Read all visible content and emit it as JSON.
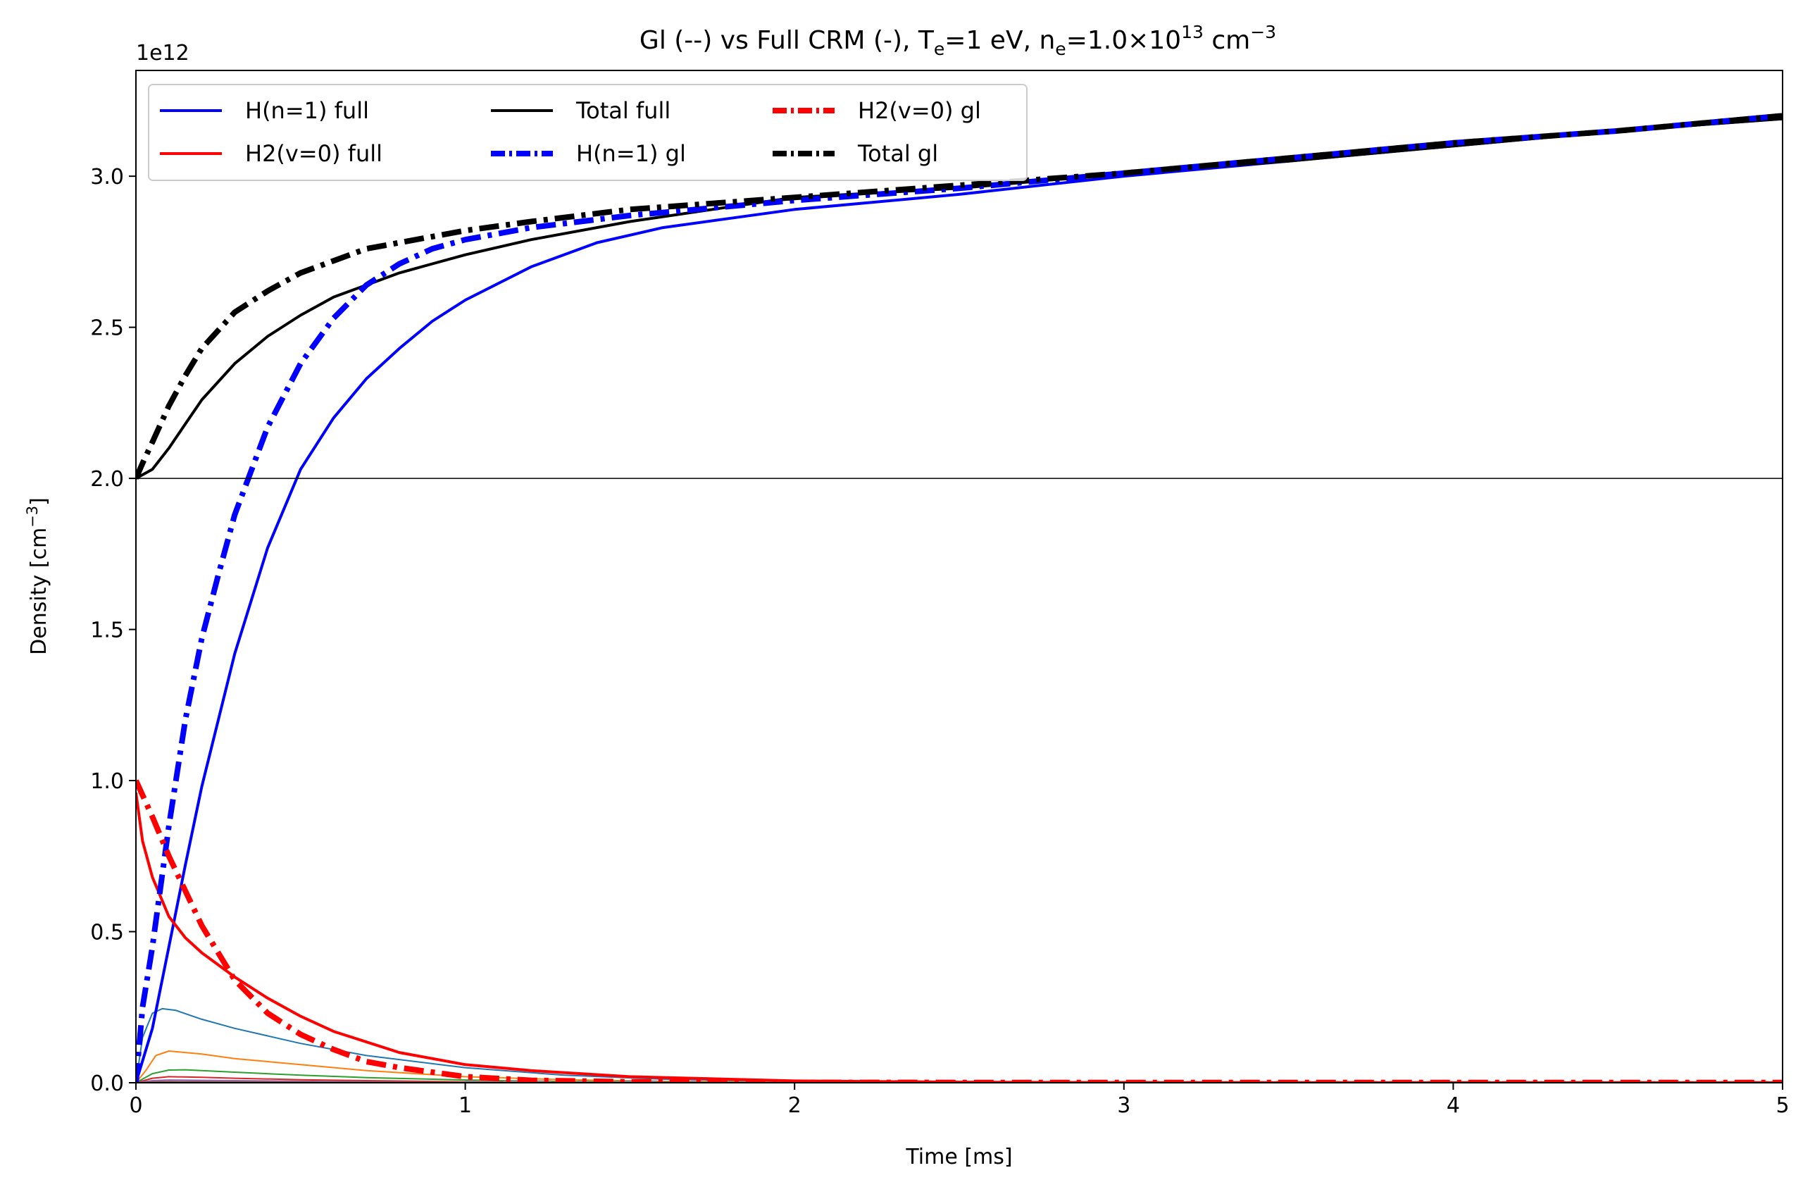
{
  "chart_data": {
    "type": "line",
    "title_parts": {
      "prefix": "Gl (--) vs Full CRM (-),  T",
      "te_sub": "e",
      "te_val": "=1 eV, n",
      "ne_sub": "e",
      "ne_val": "=1.0×10",
      "ne_exp": "13",
      "ne_unit": " cm",
      "ne_unit_exp": "−3"
    },
    "xlabel": "Time [ms]",
    "ylabel_main": "Density [cm",
    "ylabel_exp": "−3",
    "ylabel_close": "]",
    "offset_text": "1e12",
    "xlim": [
      0,
      5
    ],
    "ylim": [
      0,
      3.35
    ],
    "xticks": [
      0,
      1,
      2,
      3,
      4,
      5
    ],
    "xtick_labels": [
      "0",
      "1",
      "2",
      "3",
      "4",
      "5"
    ],
    "yticks": [
      0,
      0.5,
      1.0,
      1.5,
      2.0,
      2.5,
      3.0
    ],
    "ytick_labels": [
      "0.0",
      "0.5",
      "1.0",
      "1.5",
      "2.0",
      "2.5",
      "3.0"
    ],
    "hline": 2.0,
    "grid": false,
    "legend_position": "top-left",
    "legend_columns": 3,
    "series": [
      {
        "name": "H(n=1) full",
        "color": "#0000ff",
        "style": "solid",
        "width": 4,
        "x": [
          0,
          0.05,
          0.1,
          0.15,
          0.2,
          0.3,
          0.4,
          0.5,
          0.6,
          0.7,
          0.8,
          0.9,
          1.0,
          1.2,
          1.4,
          1.6,
          1.8,
          2.0,
          2.5,
          3.0,
          3.5,
          4.0,
          4.5,
          5.0
        ],
        "y": [
          0,
          0.18,
          0.45,
          0.72,
          0.98,
          1.42,
          1.77,
          2.03,
          2.2,
          2.33,
          2.43,
          2.52,
          2.59,
          2.7,
          2.78,
          2.83,
          2.86,
          2.89,
          2.94,
          3.0,
          3.05,
          3.1,
          3.15,
          3.19
        ]
      },
      {
        "name": "H2(v=0) full",
        "color": "#ff0000",
        "style": "solid",
        "width": 4,
        "x": [
          0,
          0.02,
          0.05,
          0.1,
          0.15,
          0.2,
          0.3,
          0.4,
          0.5,
          0.6,
          0.8,
          1.0,
          1.2,
          1.5,
          2.0,
          2.5,
          3.0,
          4.0,
          5.0
        ],
        "y": [
          0.96,
          0.8,
          0.68,
          0.55,
          0.48,
          0.43,
          0.35,
          0.28,
          0.22,
          0.17,
          0.1,
          0.06,
          0.04,
          0.02,
          0.006,
          0.002,
          0.0005,
          0,
          0
        ]
      },
      {
        "name": "Total full",
        "color": "#000000",
        "style": "solid",
        "width": 4,
        "x": [
          0,
          0.05,
          0.1,
          0.15,
          0.2,
          0.3,
          0.4,
          0.5,
          0.6,
          0.7,
          0.8,
          0.9,
          1.0,
          1.2,
          1.5,
          2.0,
          2.5,
          3.0,
          3.5,
          4.0,
          4.5,
          5.0
        ],
        "y": [
          2.0,
          2.03,
          2.1,
          2.18,
          2.26,
          2.38,
          2.47,
          2.54,
          2.6,
          2.64,
          2.68,
          2.71,
          2.74,
          2.79,
          2.85,
          2.93,
          2.96,
          3.01,
          3.05,
          3.1,
          3.15,
          3.19
        ]
      },
      {
        "name": "H(n=1) gl",
        "color": "#0000ff",
        "style": "dashdot",
        "width": 8,
        "x": [
          0,
          0.02,
          0.05,
          0.1,
          0.15,
          0.2,
          0.25,
          0.3,
          0.4,
          0.5,
          0.6,
          0.7,
          0.8,
          0.9,
          1.0,
          1.2,
          1.5,
          2.0,
          2.5,
          3.0,
          3.5,
          4.0,
          4.5,
          5.0
        ],
        "y": [
          0,
          0.25,
          0.45,
          0.85,
          1.2,
          1.47,
          1.68,
          1.88,
          2.17,
          2.38,
          2.53,
          2.64,
          2.71,
          2.76,
          2.79,
          2.83,
          2.87,
          2.92,
          2.96,
          3.01,
          3.06,
          3.11,
          3.15,
          3.2
        ]
      },
      {
        "name": "H2(v=0) gl",
        "color": "#ff0000",
        "style": "dashdot",
        "width": 8,
        "x": [
          0,
          0.05,
          0.1,
          0.2,
          0.3,
          0.4,
          0.5,
          0.6,
          0.7,
          0.8,
          1.0,
          1.2,
          1.5,
          2.0,
          3.0,
          4.0,
          5.0
        ],
        "y": [
          1.0,
          0.88,
          0.75,
          0.52,
          0.34,
          0.23,
          0.16,
          0.11,
          0.07,
          0.05,
          0.02,
          0.008,
          0.003,
          0.001,
          0.0005,
          0.0005,
          0.0005
        ]
      },
      {
        "name": "Total gl",
        "color": "#000000",
        "style": "dashdot",
        "width": 8,
        "x": [
          0,
          0.02,
          0.05,
          0.1,
          0.15,
          0.2,
          0.3,
          0.4,
          0.5,
          0.6,
          0.7,
          0.8,
          1.0,
          1.2,
          1.5,
          2.0,
          2.5,
          3.0,
          3.5,
          4.0,
          4.5,
          5.0
        ],
        "y": [
          2.0,
          2.05,
          2.12,
          2.24,
          2.34,
          2.43,
          2.55,
          2.62,
          2.68,
          2.72,
          2.76,
          2.78,
          2.82,
          2.85,
          2.89,
          2.93,
          2.97,
          3.01,
          3.06,
          3.11,
          3.15,
          3.2
        ]
      },
      {
        "color": "#1f77b4",
        "style": "solid",
        "width": 2,
        "x": [
          0,
          0.02,
          0.05,
          0.08,
          0.12,
          0.2,
          0.3,
          0.5,
          0.7,
          1.0,
          1.3,
          1.6,
          2.0,
          3.0,
          5.0
        ],
        "y": [
          0,
          0.15,
          0.23,
          0.245,
          0.24,
          0.21,
          0.18,
          0.13,
          0.09,
          0.05,
          0.025,
          0.012,
          0.005,
          0.001,
          0
        ]
      },
      {
        "color": "#ff7f0e",
        "style": "solid",
        "width": 2,
        "x": [
          0,
          0.03,
          0.06,
          0.1,
          0.15,
          0.2,
          0.3,
          0.5,
          0.7,
          1.0,
          1.3,
          1.6,
          2.0,
          3.0,
          5.0
        ],
        "y": [
          0,
          0.04,
          0.09,
          0.105,
          0.1,
          0.095,
          0.08,
          0.06,
          0.04,
          0.02,
          0.01,
          0.005,
          0.002,
          0,
          0
        ]
      },
      {
        "color": "#2ca02c",
        "style": "solid",
        "width": 2,
        "x": [
          0,
          0.05,
          0.1,
          0.15,
          0.2,
          0.3,
          0.5,
          0.7,
          1.0,
          1.3,
          1.6,
          2.0,
          3.0,
          5.0
        ],
        "y": [
          0,
          0.03,
          0.042,
          0.043,
          0.04,
          0.035,
          0.025,
          0.017,
          0.009,
          0.004,
          0.002,
          0.001,
          0,
          0
        ]
      },
      {
        "color": "#d62728",
        "style": "solid",
        "width": 2,
        "x": [
          0,
          0.05,
          0.1,
          0.2,
          0.3,
          0.5,
          0.7,
          1.0,
          1.5,
          2.0,
          3.0,
          5.0
        ],
        "y": [
          0,
          0.015,
          0.02,
          0.018,
          0.015,
          0.01,
          0.007,
          0.003,
          0.001,
          0,
          0,
          0
        ]
      },
      {
        "color": "#9467bd",
        "style": "solid",
        "width": 2,
        "x": [
          0,
          0.05,
          0.1,
          0.2,
          0.4,
          0.7,
          1.0,
          1.5,
          2.0,
          5.0
        ],
        "y": [
          0,
          0.007,
          0.009,
          0.008,
          0.006,
          0.003,
          0.001,
          0,
          0,
          0
        ]
      },
      {
        "color": "#8c564b",
        "style": "solid",
        "width": 2,
        "x": [
          0,
          0.05,
          0.1,
          0.3,
          0.6,
          1.0,
          2.0,
          5.0
        ],
        "y": [
          0,
          0.003,
          0.004,
          0.003,
          0.002,
          0.001,
          0,
          0
        ]
      },
      {
        "color": "#7f7f7f",
        "style": "dashdot",
        "width": 3,
        "x": [
          1.0,
          1.5,
          2.0,
          3.0,
          4.0,
          5.0
        ],
        "y": [
          0.005,
          0.004,
          0.003,
          0.002,
          0.002,
          0.002
        ]
      }
    ]
  }
}
